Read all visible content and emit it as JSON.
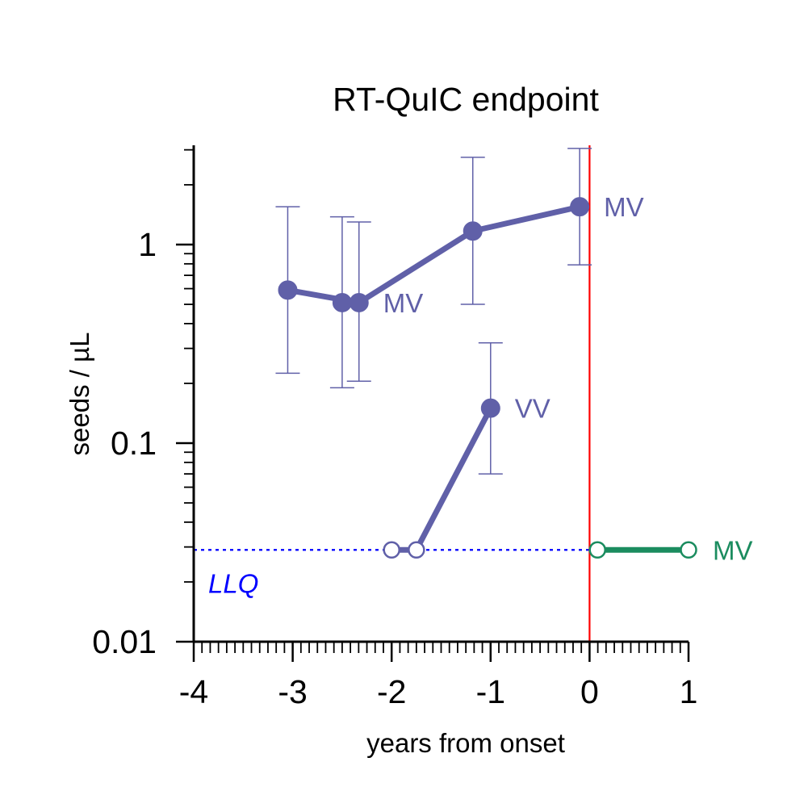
{
  "chart_data": {
    "type": "line",
    "title": "RT-QuIC endpoint",
    "xlabel": "years from onset",
    "ylabel": "seeds / µL",
    "xlim": [
      -4,
      1
    ],
    "ylim": [
      0.01,
      3.2
    ],
    "yscale": "log",
    "grid": false,
    "xticks": [
      -4,
      -3,
      -2,
      -1,
      0,
      1
    ],
    "xtick_labels": [
      "-4",
      "-3",
      "-2",
      "-1",
      "0",
      "1"
    ],
    "yticks": [
      0.01,
      0.1,
      1
    ],
    "ytick_labels": [
      "0.01",
      "0.1",
      "1"
    ],
    "reference_lines": [
      {
        "orientation": "horizontal",
        "value": 0.029,
        "style": "dotted",
        "color": "#0000ff",
        "label": "LLQ"
      },
      {
        "orientation": "vertical",
        "value": 0,
        "style": "solid",
        "color": "#ff0000",
        "label": ""
      }
    ],
    "series": [
      {
        "label": "MV",
        "color": "#6060a8",
        "points": [
          {
            "x": -3.05,
            "y": 0.59,
            "lo": 0.225,
            "hi": 1.55,
            "open": false
          },
          {
            "x": -2.5,
            "y": 0.51,
            "lo": 0.19,
            "hi": 1.38,
            "open": false
          },
          {
            "x": -2.33,
            "y": 0.51,
            "lo": 0.205,
            "hi": 1.3,
            "open": false
          },
          {
            "x": -1.18,
            "y": 1.17,
            "lo": 0.5,
            "hi": 2.75,
            "open": false
          },
          {
            "x": -0.1,
            "y": 1.55,
            "lo": 0.79,
            "hi": 3.05,
            "open": false
          }
        ],
        "line_segments": [
          [
            0,
            2
          ],
          [
            2,
            3
          ],
          [
            3,
            4
          ]
        ],
        "label_anchor": {
          "x": -2.33,
          "y": 0.51
        }
      },
      {
        "label": "VV",
        "color": "#6060a8",
        "points": [
          {
            "x": -2.0,
            "y": 0.029,
            "open": true
          },
          {
            "x": -1.75,
            "y": 0.029,
            "open": true
          },
          {
            "x": -1.0,
            "y": 0.15,
            "lo": 0.07,
            "hi": 0.32,
            "open": false
          }
        ],
        "line_segments": [
          [
            0,
            1
          ],
          [
            1,
            2
          ]
        ],
        "label_anchor": {
          "x": -1.0,
          "y": 0.15
        }
      },
      {
        "label": "MV",
        "color": "#1b8c5f",
        "points": [
          {
            "x": 0.08,
            "y": 0.029,
            "open": true
          },
          {
            "x": 1.0,
            "y": 0.029,
            "open": true
          }
        ],
        "line_segments": [
          [
            0,
            1
          ]
        ],
        "label_anchor": {
          "x": 1.0,
          "y": 0.029
        }
      },
      {
        "label": "MV",
        "color": "#6060a8",
        "points": [],
        "line_segments": [],
        "label_anchor": {
          "x": -0.1,
          "y": 1.55
        }
      }
    ]
  }
}
